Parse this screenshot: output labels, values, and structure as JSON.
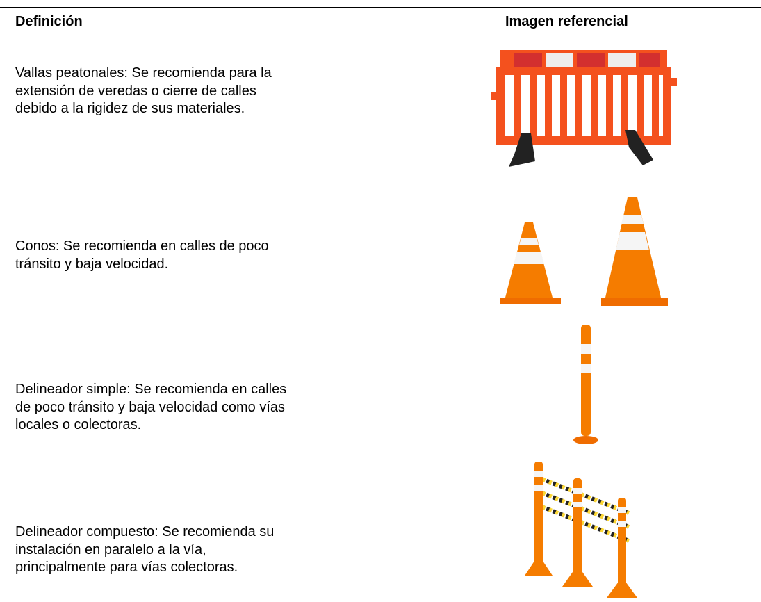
{
  "table": {
    "header": [
      "Definición",
      "Imagen referencial"
    ],
    "rows": [
      {
        "lines": [
          "Vallas peatonales: Se recomienda para la",
          "extensión de veredas o cierre de calles",
          "debido a la rigidez de sus materiales."
        ]
      },
      {
        "lines": [
          "Conos: Se recomienda en calles de poco",
          "tránsito y baja velocidad."
        ]
      },
      {
        "lines": [
          "Delineador simple: Se recomienda en calles",
          "de poco tránsito y baja velocidad como vías",
          "locales o colectoras."
        ]
      },
      {
        "lines": [
          "Delineador compuesto: Se recomienda su",
          "instalación en paralelo a la vía,",
          "principalmente para vías colectoras."
        ]
      }
    ]
  }
}
